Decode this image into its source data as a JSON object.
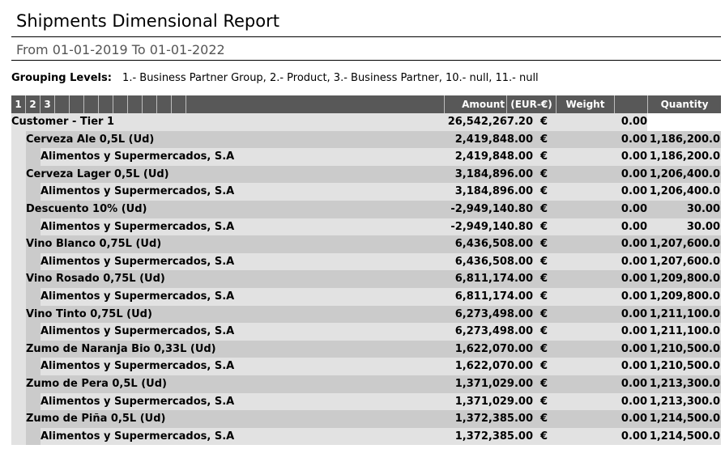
{
  "report": {
    "title": "Shipments Dimensional Report",
    "period": "From 01-01-2019 To 01-01-2022",
    "grouping_label": "Grouping Levels:",
    "grouping_value": "1.- Business Partner Group, 2.- Product, 3.- Business Partner, 10.- null, 11.- null"
  },
  "header": {
    "levels": [
      "1",
      "2",
      "3",
      "",
      "",
      "",
      "",
      "",
      "",
      "",
      "",
      ""
    ],
    "col_amount": "Amount",
    "col_currency": "(EUR-€)",
    "col_weight": "Weight",
    "col_quantity": "Quantity"
  },
  "rows": [
    {
      "level": 1,
      "name": "Customer - Tier 1",
      "amount": "26,542,267.20",
      "currency": "€",
      "weight": "0.00",
      "quantity": ""
    },
    {
      "level": 2,
      "name": "Cerveza Ale 0,5L (Ud)",
      "amount": "2,419,848.00",
      "currency": "€",
      "weight": "0.00",
      "quantity": "1,186,200.0"
    },
    {
      "level": 3,
      "name": "Alimentos y Supermercados, S.A",
      "amount": "2,419,848.00",
      "currency": "€",
      "weight": "0.00",
      "quantity": "1,186,200.0"
    },
    {
      "level": 2,
      "name": "Cerveza Lager 0,5L (Ud)",
      "amount": "3,184,896.00",
      "currency": "€",
      "weight": "0.00",
      "quantity": "1,206,400.0"
    },
    {
      "level": 3,
      "name": "Alimentos y Supermercados, S.A",
      "amount": "3,184,896.00",
      "currency": "€",
      "weight": "0.00",
      "quantity": "1,206,400.0"
    },
    {
      "level": 2,
      "name": "Descuento 10% (Ud)",
      "amount": "-2,949,140.80",
      "currency": "€",
      "weight": "0.00",
      "quantity": "30.00"
    },
    {
      "level": 3,
      "name": "Alimentos y Supermercados, S.A",
      "amount": "-2,949,140.80",
      "currency": "€",
      "weight": "0.00",
      "quantity": "30.00"
    },
    {
      "level": 2,
      "name": "Vino Blanco 0,75L (Ud)",
      "amount": "6,436,508.00",
      "currency": "€",
      "weight": "0.00",
      "quantity": "1,207,600.0"
    },
    {
      "level": 3,
      "name": "Alimentos y Supermercados, S.A",
      "amount": "6,436,508.00",
      "currency": "€",
      "weight": "0.00",
      "quantity": "1,207,600.0"
    },
    {
      "level": 2,
      "name": "Vino Rosado 0,75L (Ud)",
      "amount": "6,811,174.00",
      "currency": "€",
      "weight": "0.00",
      "quantity": "1,209,800.0"
    },
    {
      "level": 3,
      "name": "Alimentos y Supermercados, S.A",
      "amount": "6,811,174.00",
      "currency": "€",
      "weight": "0.00",
      "quantity": "1,209,800.0"
    },
    {
      "level": 2,
      "name": "Vino Tinto 0,75L (Ud)",
      "amount": "6,273,498.00",
      "currency": "€",
      "weight": "0.00",
      "quantity": "1,211,100.0"
    },
    {
      "level": 3,
      "name": "Alimentos y Supermercados, S.A",
      "amount": "6,273,498.00",
      "currency": "€",
      "weight": "0.00",
      "quantity": "1,211,100.0"
    },
    {
      "level": 2,
      "name": "Zumo de Naranja Bio 0,33L (Ud)",
      "amount": "1,622,070.00",
      "currency": "€",
      "weight": "0.00",
      "quantity": "1,210,500.0"
    },
    {
      "level": 3,
      "name": "Alimentos y Supermercados, S.A",
      "amount": "1,622,070.00",
      "currency": "€",
      "weight": "0.00",
      "quantity": "1,210,500.0"
    },
    {
      "level": 2,
      "name": "Zumo de Pera 0,5L (Ud)",
      "amount": "1,371,029.00",
      "currency": "€",
      "weight": "0.00",
      "quantity": "1,213,300.0"
    },
    {
      "level": 3,
      "name": "Alimentos y Supermercados, S.A",
      "amount": "1,371,029.00",
      "currency": "€",
      "weight": "0.00",
      "quantity": "1,213,300.0"
    },
    {
      "level": 2,
      "name": "Zumo de Piña 0,5L (Ud)",
      "amount": "1,372,385.00",
      "currency": "€",
      "weight": "0.00",
      "quantity": "1,214,500.0"
    },
    {
      "level": 3,
      "name": "Alimentos y Supermercados, S.A",
      "amount": "1,372,385.00",
      "currency": "€",
      "weight": "0.00",
      "quantity": "1,214,500.0"
    }
  ],
  "colors": {
    "header_bg": "#585858",
    "level1_bg": "#e2e2e2",
    "level2_bg": "#cbcbcb",
    "level3_bg": "#e2e2e2"
  }
}
